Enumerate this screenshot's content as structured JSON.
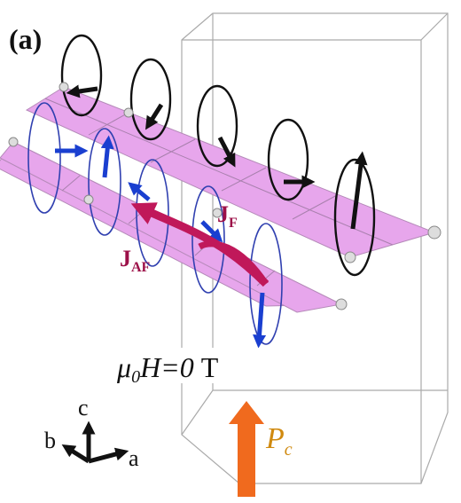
{
  "panel_label": "(a)",
  "exchange": {
    "ferro": {
      "symbol": "J",
      "subscript": "F"
    },
    "antiferro": {
      "symbol": "J",
      "subscript": "AF"
    }
  },
  "field": {
    "mu": "μ",
    "mu_subscript": "0",
    "rest": "H=0",
    "unit": "T"
  },
  "polarization": {
    "symbol": "P",
    "subscript": "c"
  },
  "axes": {
    "c": "c",
    "b": "b",
    "a": "a"
  }
}
